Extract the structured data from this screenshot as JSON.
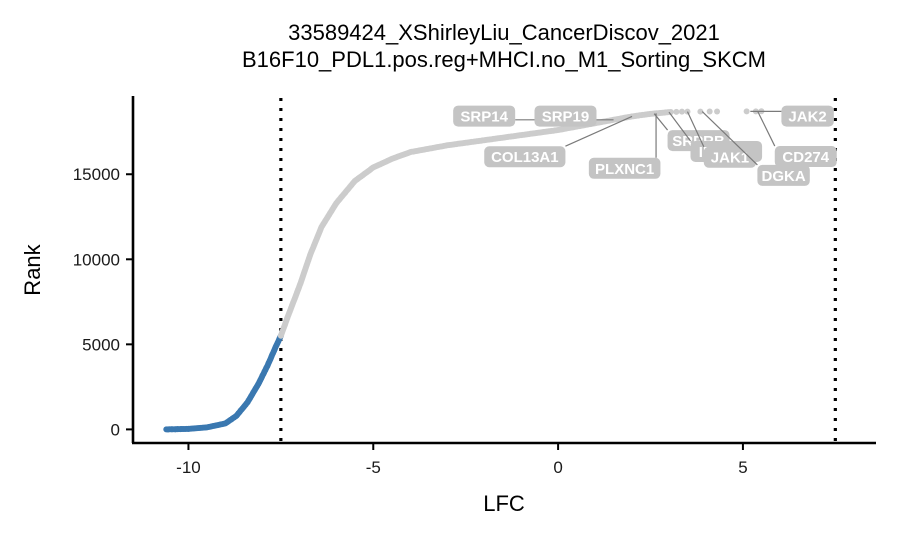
{
  "chart_data": {
    "type": "scatter",
    "title": "33589424_XShirleyLiu_CancerDiscov_2021",
    "subtitle": "B16F10_PDL1.pos.reg+MHCI.no_M1_Sorting_SKCM",
    "xlabel": "LFC",
    "ylabel": "Rank",
    "xlim": [
      -11.5,
      8.6
    ],
    "ylim": [
      -800,
      19600
    ],
    "x_ticks": [
      {
        "value": -10,
        "label": "-10"
      },
      {
        "value": -5,
        "label": "-5"
      },
      {
        "value": 0,
        "label": "0"
      },
      {
        "value": 5,
        "label": "5"
      }
    ],
    "y_ticks": [
      {
        "value": 0,
        "label": "0"
      },
      {
        "value": 5000,
        "label": "5000"
      },
      {
        "value": 10000,
        "label": "10000"
      },
      {
        "value": 15000,
        "label": "15000"
      }
    ],
    "thresholds": [
      -7.5,
      7.5
    ],
    "total_genes": 18700,
    "series": [
      {
        "group": "negative",
        "color": "#3a78b0",
        "curve": [
          [
            -10.6,
            0
          ],
          [
            -10.0,
            30
          ],
          [
            -9.5,
            120
          ],
          [
            -9.0,
            350
          ],
          [
            -8.7,
            800
          ],
          [
            -8.4,
            1600
          ],
          [
            -8.1,
            2700
          ],
          [
            -7.85,
            3800
          ],
          [
            -7.65,
            4800
          ],
          [
            -7.5,
            5500
          ]
        ],
        "outliers": [
          [
            -10.55,
            0
          ],
          [
            -10.45,
            5
          ],
          [
            -10.35,
            10
          ],
          [
            -10.3,
            15
          ],
          [
            -10.2,
            20
          ],
          [
            -10.0,
            30
          ]
        ]
      },
      {
        "group": "other",
        "color": "#cccccc",
        "curve": [
          [
            -7.5,
            5500
          ],
          [
            -7.3,
            6700
          ],
          [
            -7.0,
            8400
          ],
          [
            -6.7,
            10300
          ],
          [
            -6.4,
            11900
          ],
          [
            -6.0,
            13300
          ],
          [
            -5.5,
            14600
          ],
          [
            -5.0,
            15400
          ],
          [
            -4.5,
            15900
          ],
          [
            -4.0,
            16300
          ],
          [
            -3.0,
            16700
          ],
          [
            -2.0,
            17000
          ],
          [
            -1.0,
            17300
          ],
          [
            0.0,
            17600
          ],
          [
            1.0,
            18000
          ],
          [
            1.5,
            18200
          ],
          [
            2.0,
            18400
          ],
          [
            2.5,
            18550
          ],
          [
            3.0,
            18650
          ]
        ],
        "outliers": [
          [
            3.05,
            18660
          ],
          [
            3.2,
            18670
          ],
          [
            3.35,
            18680
          ],
          [
            3.5,
            18680
          ],
          [
            3.85,
            18685
          ],
          [
            4.1,
            18690
          ],
          [
            4.3,
            18690
          ],
          [
            5.1,
            18695
          ],
          [
            5.35,
            18698
          ],
          [
            5.5,
            18700
          ]
        ]
      }
    ],
    "labels": [
      {
        "text": "SRP14",
        "point": [
          1.5,
          18200
        ],
        "label": [
          -2.0,
          18420
        ]
      },
      {
        "text": "SRP19",
        "point": [
          1.0,
          18000
        ],
        "label": [
          0.2,
          18420
        ]
      },
      {
        "text": "COL13A1",
        "point": [
          2.0,
          18400
        ],
        "label": [
          -0.9,
          16030
        ]
      },
      {
        "text": "SRPRB",
        "point": [
          2.6,
          18560
        ],
        "label": [
          3.8,
          16980
        ]
      },
      {
        "text": "PLXNC1",
        "point": [
          2.65,
          18580
        ],
        "label": [
          1.8,
          15350
        ]
      },
      {
        "text": "IFNGR2",
        "point": [
          3.0,
          18650
        ],
        "label": [
          4.55,
          16340
        ]
      },
      {
        "text": "JAK1",
        "point": [
          3.5,
          18680
        ],
        "label": [
          4.65,
          16000
        ]
      },
      {
        "text": "DGKA",
        "point": [
          3.9,
          18685
        ],
        "label": [
          6.1,
          14930
        ]
      },
      {
        "text": "JAK2",
        "point": [
          5.2,
          18695
        ],
        "label": [
          6.75,
          18420
        ]
      },
      {
        "text": "CD274",
        "point": [
          5.4,
          18698
        ],
        "label": [
          6.7,
          16040
        ]
      }
    ]
  }
}
